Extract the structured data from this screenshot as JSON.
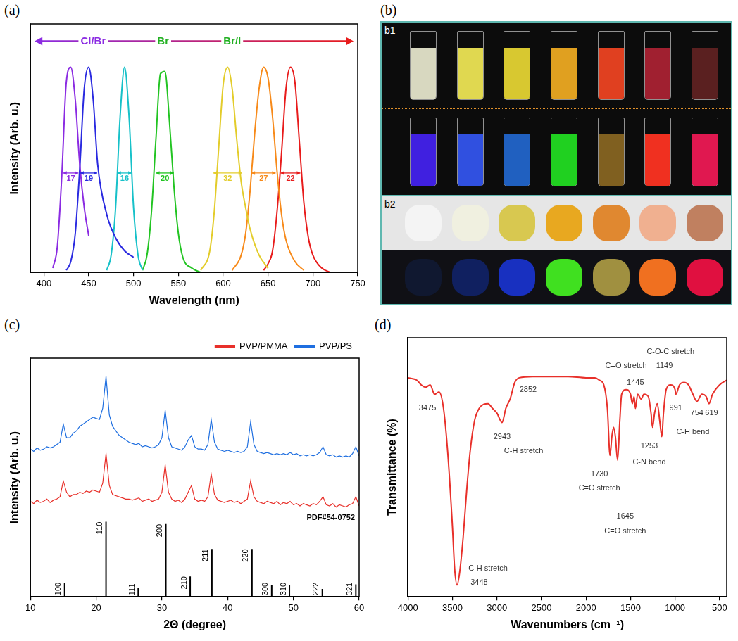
{
  "chart_data": [
    {
      "panel": "(a)",
      "type": "line",
      "x_label": "Wavelength (nm)",
      "y_label": "Intensity (Arb. u.)",
      "xlim": [
        385,
        750
      ],
      "xticks": [
        400,
        450,
        500,
        550,
        600,
        650,
        700,
        750
      ],
      "ylim": [
        0,
        1.15
      ],
      "tick_labels": "x",
      "grid": false,
      "series": [
        {
          "color": "#8b2be2",
          "fwhm": 17,
          "x": [
            410,
            415,
            420,
            425,
            430,
            435,
            440,
            445,
            450
          ],
          "values": [
            0.02,
            0.12,
            0.45,
            0.88,
            0.95,
            0.8,
            0.5,
            0.3,
            0.17
          ]
        },
        {
          "color": "#2a2ae0",
          "fwhm": 19,
          "x": [
            425,
            430,
            435,
            440,
            445,
            450,
            455,
            460,
            470,
            480,
            490,
            500
          ],
          "values": [
            0.01,
            0.05,
            0.18,
            0.48,
            0.85,
            0.95,
            0.8,
            0.5,
            0.27,
            0.16,
            0.1,
            0.07
          ]
        },
        {
          "color": "#17c1c9",
          "fwhm": 16,
          "x": [
            470,
            475,
            480,
            485,
            490,
            495,
            500,
            505,
            510
          ],
          "values": [
            0.01,
            0.08,
            0.3,
            0.72,
            0.95,
            0.72,
            0.3,
            0.08,
            0.01
          ]
        },
        {
          "color": "#22c422",
          "fwhm": 20,
          "x": [
            510,
            515,
            520,
            525,
            530,
            535,
            540,
            545,
            550,
            555,
            565,
            575
          ],
          "values": [
            0.01,
            0.08,
            0.28,
            0.62,
            0.92,
            0.93,
            0.7,
            0.4,
            0.18,
            0.07,
            0.02,
            0.0
          ]
        },
        {
          "color": "#e3cc2a",
          "fwhm": 32,
          "x": [
            575,
            585,
            590,
            595,
            600,
            605,
            610,
            615,
            620,
            625,
            630,
            640,
            650
          ],
          "values": [
            0.01,
            0.1,
            0.28,
            0.58,
            0.87,
            0.95,
            0.85,
            0.62,
            0.42,
            0.3,
            0.2,
            0.08,
            0.02
          ]
        },
        {
          "color": "#f78a1a",
          "fwhm": 27,
          "x": [
            610,
            620,
            625,
            630,
            635,
            640,
            645,
            650,
            655,
            660,
            665,
            670,
            680,
            690
          ],
          "values": [
            0.01,
            0.08,
            0.18,
            0.38,
            0.64,
            0.85,
            0.95,
            0.9,
            0.72,
            0.47,
            0.27,
            0.15,
            0.05,
            0.01
          ]
        },
        {
          "color": "#e81c1c",
          "fwhm": 22,
          "x": [
            645,
            650,
            655,
            660,
            665,
            670,
            675,
            680,
            685,
            690,
            695,
            700,
            710,
            720
          ],
          "values": [
            0.01,
            0.04,
            0.1,
            0.28,
            0.55,
            0.85,
            0.95,
            0.88,
            0.6,
            0.32,
            0.16,
            0.08,
            0.02,
            0.0
          ]
        }
      ],
      "annotations": [
        {
          "text": "Cl/Br",
          "x": 455,
          "y": 1.07,
          "color": "#8b2be2"
        },
        {
          "text": "Br",
          "x": 533,
          "y": 1.07,
          "color": "#22b022"
        },
        {
          "text": "Br/I",
          "x": 610,
          "y": 1.07,
          "color": "#22b022"
        }
      ]
    },
    {
      "panel": "(c)",
      "type": "line",
      "x_label": "2Θ (degree)",
      "y_label": "Intensity (Arb. u.)",
      "xlim": [
        10,
        60
      ],
      "xticks": [
        10,
        20,
        30,
        40,
        50,
        60
      ],
      "ylim": [
        0,
        10.5
      ],
      "tick_labels": "x",
      "grid": false,
      "legend": "top right",
      "x": [
        10,
        10.5,
        11,
        11.5,
        12,
        12.5,
        13,
        13.5,
        14,
        14.5,
        15,
        15.5,
        16,
        16.5,
        17,
        17.5,
        18,
        18.5,
        19,
        19.5,
        20,
        20.5,
        21,
        21.5,
        22,
        22.5,
        23,
        23.5,
        24,
        24.5,
        25,
        25.5,
        26,
        26.5,
        27,
        27.5,
        28,
        28.5,
        29,
        29.5,
        30,
        30.5,
        31,
        31.5,
        32,
        32.5,
        33,
        33.5,
        34,
        34.5,
        35,
        35.5,
        36,
        36.5,
        37,
        37.5,
        38,
        38.5,
        39,
        39.5,
        40,
        40.5,
        41,
        41.5,
        42,
        42.5,
        43,
        43.5,
        44,
        44.5,
        45,
        45.5,
        46,
        46.5,
        47,
        47.5,
        48,
        48.5,
        49,
        49.5,
        50,
        50.5,
        51,
        51.5,
        52,
        52.5,
        53,
        53.5,
        54,
        54.5,
        55,
        55.5,
        56,
        56.5,
        57,
        57.5,
        58,
        58.5,
        59,
        59.5,
        60
      ],
      "series": [
        {
          "name": "PVP/PMMA",
          "color": "#e8302a",
          "values": [
            4.2,
            4.1,
            4.25,
            4.15,
            4.2,
            4.3,
            4.15,
            4.25,
            4.3,
            4.4,
            5.1,
            4.6,
            4.4,
            4.5,
            4.5,
            4.6,
            4.55,
            4.65,
            4.6,
            4.7,
            4.65,
            4.6,
            5.0,
            6.3,
            4.9,
            4.5,
            4.45,
            4.4,
            4.35,
            4.3,
            4.3,
            4.25,
            4.3,
            4.35,
            4.2,
            4.25,
            4.3,
            4.2,
            4.25,
            4.3,
            4.6,
            5.8,
            4.6,
            4.3,
            4.2,
            4.25,
            4.15,
            4.3,
            4.6,
            4.9,
            4.3,
            4.2,
            4.25,
            4.2,
            4.4,
            5.4,
            4.5,
            4.25,
            4.2,
            4.15,
            4.2,
            4.25,
            4.15,
            4.2,
            4.1,
            4.2,
            4.3,
            5.1,
            4.4,
            4.2,
            4.15,
            4.1,
            4.2,
            4.15,
            4.1,
            4.2,
            4.05,
            4.15,
            4.1,
            4.2,
            4.05,
            4.1,
            4.0,
            4.1,
            4.05,
            4.0,
            4.1,
            4.05,
            4.2,
            4.4,
            4.05,
            4.0,
            4.1,
            3.95,
            4.05,
            4.0,
            3.95,
            4.05,
            4.1,
            4.4,
            4.0
          ]
        },
        {
          "name": "PVP/PS",
          "color": "#1f6fe0",
          "values": [
            6.5,
            6.4,
            6.55,
            6.45,
            6.5,
            6.6,
            6.55,
            6.6,
            6.7,
            6.8,
            7.6,
            7.0,
            7.0,
            7.2,
            7.3,
            7.5,
            7.6,
            7.7,
            7.8,
            7.9,
            7.85,
            7.8,
            8.3,
            9.7,
            8.0,
            7.5,
            7.3,
            7.1,
            7.0,
            6.9,
            6.8,
            6.75,
            6.7,
            6.75,
            6.6,
            6.65,
            6.6,
            6.55,
            6.6,
            6.7,
            7.0,
            8.2,
            7.0,
            6.6,
            6.55,
            6.5,
            6.45,
            6.6,
            6.9,
            7.1,
            6.6,
            6.5,
            6.5,
            6.45,
            6.7,
            7.8,
            6.8,
            6.5,
            6.45,
            6.4,
            6.45,
            6.4,
            6.35,
            6.4,
            6.35,
            6.4,
            6.6,
            7.7,
            6.7,
            6.4,
            6.35,
            6.3,
            6.35,
            6.3,
            6.25,
            6.3,
            6.25,
            6.3,
            6.25,
            6.35,
            6.25,
            6.3,
            6.2,
            6.25,
            6.2,
            6.25,
            6.2,
            6.25,
            6.35,
            6.6,
            6.25,
            6.2,
            6.25,
            6.15,
            6.2,
            6.15,
            6.2,
            6.15,
            6.3,
            6.6,
            6.2
          ]
        }
      ],
      "reference": {
        "name": "PDF#54-0752",
        "color": "#000000",
        "peaks": [
          {
            "label": "100",
            "x": 15.2,
            "height": 0.6
          },
          {
            "label": "110",
            "x": 21.5,
            "height": 3.3
          },
          {
            "label": "111",
            "x": 26.4,
            "height": 0.4
          },
          {
            "label": "200",
            "x": 30.6,
            "height": 3.2
          },
          {
            "label": "210",
            "x": 34.3,
            "height": 0.9
          },
          {
            "label": "211",
            "x": 37.6,
            "height": 2.1
          },
          {
            "label": "220",
            "x": 43.7,
            "height": 2.1
          },
          {
            "label": "300",
            "x": 46.7,
            "height": 0.5
          },
          {
            "label": "310",
            "x": 49.4,
            "height": 0.5
          },
          {
            "label": "222",
            "x": 54.4,
            "height": 0.35
          },
          {
            "label": "321",
            "x": 59.5,
            "height": 0.55
          }
        ]
      }
    },
    {
      "panel": "(d)",
      "type": "line",
      "x_label": "Wavenumbers (cm⁻¹)",
      "y_label": "Transmittance (%)",
      "xlim": [
        4000,
        420
      ],
      "xticks": [
        4000,
        3500,
        3000,
        2500,
        2000,
        1500,
        1000,
        500
      ],
      "ylim": [
        0,
        1.1
      ],
      "tick_labels": "x",
      "grid": false,
      "series": [
        {
          "color": "#e8302a",
          "x": [
            4000,
            3900,
            3850,
            3800,
            3750,
            3700,
            3650,
            3600,
            3550,
            3500,
            3475,
            3448,
            3420,
            3380,
            3340,
            3300,
            3250,
            3200,
            3100,
            3050,
            3000,
            2943,
            2900,
            2852,
            2800,
            2750,
            2600,
            2400,
            2200,
            2000,
            1900,
            1850,
            1800,
            1760,
            1730,
            1710,
            1690,
            1670,
            1645,
            1620,
            1600,
            1550,
            1500,
            1480,
            1460,
            1445,
            1420,
            1380,
            1350,
            1300,
            1270,
            1253,
            1230,
            1200,
            1170,
            1149,
            1130,
            1100,
            1050,
            1000,
            991,
            950,
            900,
            850,
            800,
            754,
            700,
            650,
            619,
            580,
            500,
            420
          ],
          "values": [
            0.93,
            0.92,
            0.9,
            0.89,
            0.9,
            0.86,
            0.87,
            0.8,
            0.6,
            0.3,
            0.12,
            0.05,
            0.1,
            0.25,
            0.45,
            0.62,
            0.75,
            0.8,
            0.82,
            0.8,
            0.78,
            0.74,
            0.8,
            0.84,
            0.91,
            0.93,
            0.935,
            0.935,
            0.935,
            0.93,
            0.93,
            0.92,
            0.9,
            0.8,
            0.6,
            0.68,
            0.72,
            0.68,
            0.58,
            0.75,
            0.86,
            0.88,
            0.86,
            0.82,
            0.85,
            0.8,
            0.86,
            0.84,
            0.86,
            0.85,
            0.78,
            0.72,
            0.78,
            0.82,
            0.74,
            0.68,
            0.78,
            0.88,
            0.9,
            0.88,
            0.86,
            0.9,
            0.91,
            0.9,
            0.86,
            0.83,
            0.86,
            0.85,
            0.82,
            0.86,
            0.9,
            0.92
          ]
        }
      ],
      "annotations": [
        {
          "text": "3475",
          "x": 3780,
          "y": 0.8
        },
        {
          "text": "C-H stretch",
          "x": 3100,
          "y": 0.12
        },
        {
          "text": "3448",
          "x": 3200,
          "y": 0.06
        },
        {
          "text": "2943",
          "x": 2943,
          "y": 0.68
        },
        {
          "text": "2852",
          "x": 2650,
          "y": 0.88
        },
        {
          "text": "C-H stretch",
          "x": 2700,
          "y": 0.62
        },
        {
          "text": "1730",
          "x": 1850,
          "y": 0.52
        },
        {
          "text": "C=O stretch",
          "x": 1850,
          "y": 0.46
        },
        {
          "text": "1645",
          "x": 1560,
          "y": 0.34
        },
        {
          "text": "C=O stretch",
          "x": 1560,
          "y": 0.28
        },
        {
          "text": "C=O stretch",
          "x": 1550,
          "y": 0.98
        },
        {
          "text": "1445",
          "x": 1445,
          "y": 0.91
        },
        {
          "text": "C-O-C stretch",
          "x": 1050,
          "y": 1.04
        },
        {
          "text": "1149",
          "x": 1120,
          "y": 0.98
        },
        {
          "text": "1253",
          "x": 1290,
          "y": 0.64
        },
        {
          "text": "C-N bend",
          "x": 1290,
          "y": 0.57
        },
        {
          "text": "991",
          "x": 991,
          "y": 0.8
        },
        {
          "text": "754",
          "x": 754,
          "y": 0.78
        },
        {
          "text": "619",
          "x": 590,
          "y": 0.78
        },
        {
          "text": "C-H bend",
          "x": 800,
          "y": 0.7
        }
      ]
    }
  ],
  "panel_b": {
    "label": "(b)",
    "sections": [
      {
        "label": "b1",
        "rows": [
          [
            "#d8d8c0",
            "#e0d850",
            "#d8c830",
            "#e0a020",
            "#e04020",
            "#a02030",
            "#5a2020"
          ],
          [
            "#4020e0",
            "#3050e0",
            "#2060c0",
            "#20d020",
            "#806020",
            "#f03020",
            "#e01850"
          ]
        ]
      },
      {
        "label": "b2",
        "rows": [
          [
            "#f4f4f4",
            "#f0f0e0",
            "#d8c850",
            "#e8a820",
            "#e08830",
            "#f0b090",
            "#c08060"
          ],
          [
            "#101830",
            "#102060",
            "#1830c0",
            "#40e020",
            "#a09040",
            "#f07020",
            "#e01040"
          ]
        ]
      }
    ]
  }
}
